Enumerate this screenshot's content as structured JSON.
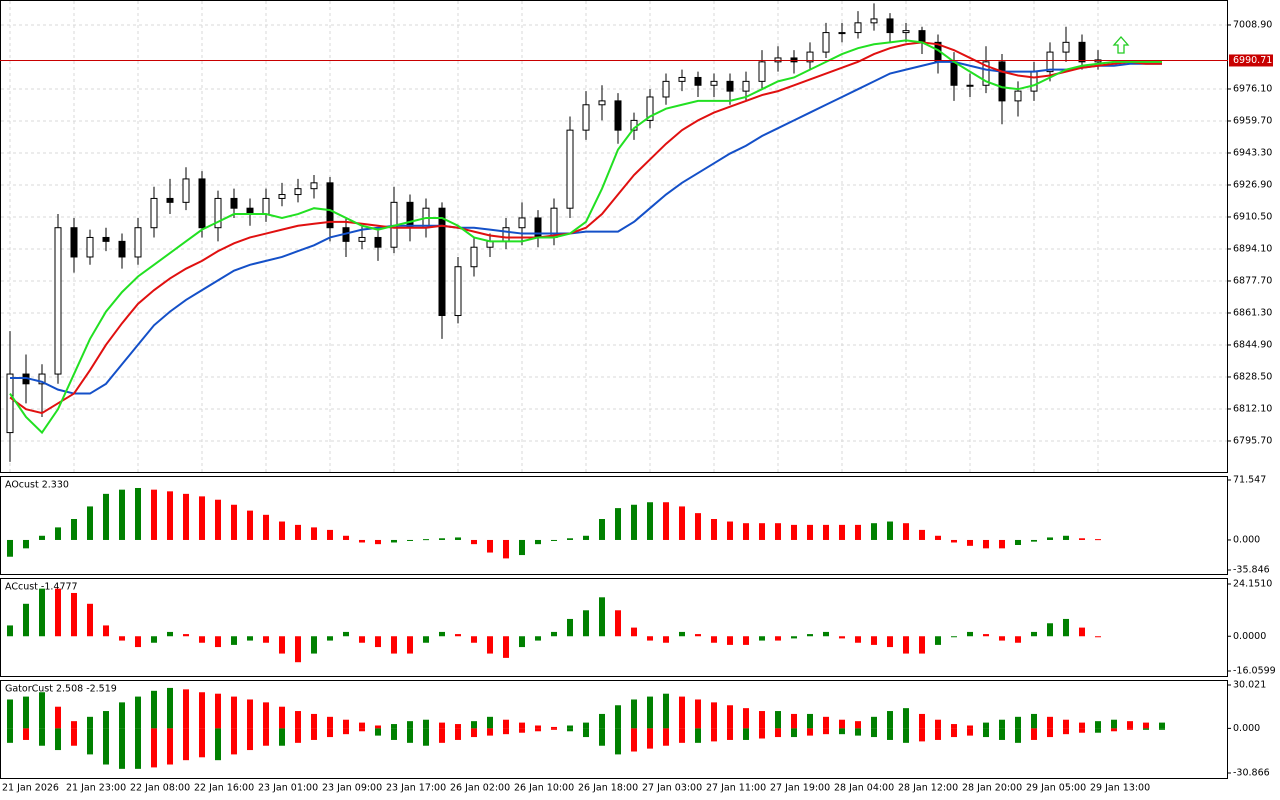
{
  "chart_data": [
    {
      "type": "candlestick",
      "categories": [
        "21 Jan 2026",
        null,
        null,
        null,
        "21 Jan 23:00",
        null,
        null,
        null,
        "22 Jan 08:00",
        null,
        null,
        null,
        "22 Jan 16:00",
        null,
        null,
        null,
        "23 Jan 01:00",
        null,
        null,
        null,
        "23 Jan 09:00",
        null,
        null,
        null,
        "23 Jan 17:00",
        null,
        null,
        null,
        "26 Jan 02:00",
        null,
        null,
        null,
        "26 Jan 10:00",
        null,
        null,
        null,
        "26 Jan 18:00",
        null,
        null,
        null,
        "27 Jan 03:00",
        null,
        null,
        null,
        "27 Jan 11:00",
        null,
        null,
        null,
        "27 Jan 19:00",
        null,
        null,
        null,
        "28 Jan 04:00",
        null,
        null,
        null,
        "28 Jan 12:00",
        null,
        null,
        null,
        "28 Jan 20:00",
        null,
        null,
        null,
        "29 Jan 05:00",
        null,
        null,
        null,
        "29 Jan 13:00",
        null,
        null,
        null,
        null
      ],
      "candles": [
        [
          6800,
          6852,
          6785,
          6830
        ],
        [
          6830,
          6840,
          6815,
          6825
        ],
        [
          6825,
          6835,
          6808,
          6830
        ],
        [
          6830,
          6912,
          6825,
          6905
        ],
        [
          6905,
          6910,
          6882,
          6890
        ],
        [
          6890,
          6904,
          6886,
          6900
        ],
        [
          6900,
          6905,
          6893,
          6898
        ],
        [
          6898,
          6902,
          6884,
          6890
        ],
        [
          6890,
          6910,
          6886,
          6905
        ],
        [
          6905,
          6926,
          6900,
          6920
        ],
        [
          6920,
          6930,
          6912,
          6918
        ],
        [
          6918,
          6936,
          6914,
          6930
        ],
        [
          6930,
          6934,
          6900,
          6905
        ],
        [
          6905,
          6924,
          6898,
          6920
        ],
        [
          6920,
          6925,
          6910,
          6915
        ],
        [
          6915,
          6920,
          6906,
          6912
        ],
        [
          6912,
          6925,
          6908,
          6920
        ],
        [
          6920,
          6928,
          6916,
          6922
        ],
        [
          6922,
          6930,
          6918,
          6925
        ],
        [
          6925,
          6932,
          6920,
          6928
        ],
        [
          6928,
          6931,
          6898,
          6905
        ],
        [
          6905,
          6910,
          6890,
          6898
        ],
        [
          6898,
          6906,
          6894,
          6900
        ],
        [
          6900,
          6904,
          6888,
          6895
        ],
        [
          6895,
          6926,
          6892,
          6918
        ],
        [
          6918,
          6922,
          6898,
          6905
        ],
        [
          6905,
          6920,
          6900,
          6915
        ],
        [
          6915,
          6918,
          6848,
          6860
        ],
        [
          6860,
          6890,
          6856,
          6885
        ],
        [
          6885,
          6900,
          6880,
          6895
        ],
        [
          6895,
          6902,
          6890,
          6898
        ],
        [
          6898,
          6910,
          6894,
          6905
        ],
        [
          6905,
          6918,
          6896,
          6910
        ],
        [
          6910,
          6914,
          6895,
          6900
        ],
        [
          6900,
          6920,
          6896,
          6915
        ],
        [
          6915,
          6962,
          6910,
          6955
        ],
        [
          6955,
          6975,
          6950,
          6968
        ],
        [
          6968,
          6978,
          6960,
          6970
        ],
        [
          6970,
          6974,
          6948,
          6955
        ],
        [
          6955,
          6964,
          6950,
          6960
        ],
        [
          6960,
          6976,
          6956,
          6972
        ],
        [
          6972,
          6984,
          6968,
          6980
        ],
        [
          6980,
          6986,
          6975,
          6982
        ],
        [
          6982,
          6985,
          6972,
          6978
        ],
        [
          6978,
          6984,
          6972,
          6980
        ],
        [
          6980,
          6984,
          6968,
          6975
        ],
        [
          6975,
          6985,
          6970,
          6980
        ],
        [
          6980,
          6996,
          6976,
          6990
        ],
        [
          6990,
          6998,
          6985,
          6992
        ],
        [
          6992,
          6996,
          6984,
          6990
        ],
        [
          6990,
          7000,
          6986,
          6995
        ],
        [
          6995,
          7010,
          6992,
          7005
        ],
        [
          7005,
          7010,
          7000,
          7005
        ],
        [
          7005,
          7016,
          7002,
          7010
        ],
        [
          7010,
          7020,
          7006,
          7012
        ],
        [
          7012,
          7015,
          7000,
          7005
        ],
        [
          7005,
          7010,
          7000,
          7006
        ],
        [
          7006,
          7008,
          6994,
          7000
        ],
        [
          7000,
          7004,
          6984,
          6990
        ],
        [
          6990,
          6995,
          6970,
          6978
        ],
        [
          6978,
          6984,
          6972,
          6978
        ],
        [
          6978,
          6998,
          6974,
          6990
        ],
        [
          6990,
          6994,
          6958,
          6970
        ],
        [
          6970,
          6980,
          6962,
          6975
        ],
        [
          6975,
          6990,
          6970,
          6985
        ],
        [
          6985,
          7000,
          6980,
          6995
        ],
        [
          6995,
          7008,
          6990,
          7000
        ],
        [
          7000,
          7004,
          6986,
          6990
        ],
        [
          6990,
          6996,
          6986,
          6991
        ],
        null,
        null,
        null,
        null
      ],
      "up_color": "#ffffff",
      "down_color": "#000000",
      "lines": [
        {
          "color": "#1450c8",
          "values": [
            6828,
            6828,
            6826,
            6822,
            6820,
            6820,
            6825,
            6835,
            6845,
            6855,
            6862,
            6868,
            6873,
            6878,
            6883,
            6886,
            6888,
            6890,
            6893,
            6896,
            6900,
            6902,
            6904,
            6905,
            6906,
            6906,
            6906,
            6906,
            6905,
            6905,
            6904,
            6903,
            6902,
            6902,
            6902,
            6902,
            6903,
            6903,
            6903,
            6908,
            6915,
            6922,
            6928,
            6933,
            6938,
            6943,
            6947,
            6952,
            6956,
            6960,
            6964,
            6968,
            6972,
            6976,
            6980,
            6984,
            6986,
            6988,
            6990,
            6990,
            6988,
            6986,
            6985,
            6985,
            6985,
            6986,
            6986,
            6987,
            6988,
            6988,
            6989,
            6989,
            6989
          ]
        },
        {
          "color": "#e01010",
          "values": [
            6818,
            6812,
            6810,
            6815,
            6820,
            6832,
            6845,
            6856,
            6866,
            6873,
            6879,
            6884,
            6888,
            6893,
            6897,
            6900,
            6902,
            6904,
            6906,
            6907,
            6908,
            6908,
            6907,
            6906,
            6905,
            6905,
            6905,
            6906,
            6905,
            6903,
            6901,
            6900,
            6900,
            6900,
            6901,
            6902,
            6905,
            6912,
            6922,
            6932,
            6940,
            6948,
            6955,
            6960,
            6964,
            6967,
            6970,
            6973,
            6975,
            6978,
            6981,
            6984,
            6987,
            6990,
            6994,
            6997,
            6999,
            7000,
            6999,
            6996,
            6992,
            6988,
            6985,
            6983,
            6982,
            6983,
            6985,
            6987,
            6988,
            6989,
            6990,
            6989,
            6989
          ]
        },
        {
          "color": "#22e022",
          "values": [
            6820,
            6808,
            6800,
            6812,
            6830,
            6848,
            6862,
            6872,
            6880,
            6886,
            6892,
            6898,
            6904,
            6908,
            6912,
            6912,
            6912,
            6910,
            6912,
            6915,
            6914,
            6910,
            6906,
            6904,
            6906,
            6908,
            6910,
            6910,
            6906,
            6900,
            6898,
            6898,
            6898,
            6900,
            6900,
            6902,
            6908,
            6925,
            6945,
            6956,
            6962,
            6966,
            6968,
            6970,
            6970,
            6970,
            6972,
            6976,
            6980,
            6982,
            6986,
            6990,
            6994,
            6997,
            6999,
            7000,
            7001,
            7000,
            6996,
            6990,
            6985,
            6980,
            6977,
            6976,
            6978,
            6982,
            6986,
            6988,
            6989,
            6990,
            6990,
            6990,
            6990
          ]
        }
      ],
      "ylim": [
        6779.8,
        7021.7
      ],
      "yticks": [
        {
          "value": 7008.9,
          "label": "7008.90"
        },
        {
          "value": 6976.1,
          "label": "6976.10"
        },
        {
          "value": 6959.7,
          "label": "6959.70"
        },
        {
          "value": 6943.3,
          "label": "6943.30"
        },
        {
          "value": 6926.9,
          "label": "6926.90"
        },
        {
          "value": 6910.5,
          "label": "6910.50"
        },
        {
          "value": 6894.1,
          "label": "6894.10"
        },
        {
          "value": 6877.7,
          "label": "6877.70"
        },
        {
          "value": 6861.3,
          "label": "6861.30"
        },
        {
          "value": 6844.9,
          "label": "6844.90"
        },
        {
          "value": 6828.5,
          "label": "6828.50"
        },
        {
          "value": 6812.1,
          "label": "6812.10"
        },
        {
          "value": 6795.7,
          "label": "6795.70"
        }
      ],
      "grid": true,
      "current_price": 6990.71,
      "current_price_color": "#c80000"
    },
    {
      "type": "histogram",
      "title": "AOcust 2.330",
      "values": [
        -20,
        -10,
        5,
        15,
        25,
        40,
        55,
        60,
        62,
        60,
        58,
        55,
        52,
        48,
        42,
        35,
        30,
        22,
        18,
        15,
        12,
        5,
        -3,
        -5,
        -3,
        0,
        1,
        2,
        3,
        -5,
        -15,
        -22,
        -18,
        -5,
        0,
        2,
        5,
        25,
        38,
        42,
        45,
        45,
        40,
        32,
        25,
        22,
        20,
        20,
        20,
        18,
        18,
        18,
        18,
        18,
        20,
        22,
        20,
        12,
        5,
        -3,
        -7,
        -10,
        -10,
        -6,
        -2,
        3,
        5,
        2,
        1
      ],
      "up_color": "#008000",
      "down_color": "#ff0000",
      "ylim": [
        -40.6,
        76.3
      ],
      "yticks": [
        71.547,
        {
          "value": 0,
          "label": "0.000"
        },
        -35.846
      ]
    },
    {
      "type": "histogram",
      "title": "ACcust -1.4777",
      "values": [
        5,
        15,
        22,
        22,
        20,
        15,
        5,
        -2,
        -5,
        -3,
        2,
        1,
        -3,
        -5,
        -4,
        -2,
        -3,
        -8,
        -12,
        -8,
        -2,
        2,
        -3,
        -5,
        -8,
        -8,
        -3,
        2,
        1,
        -3,
        -8,
        -10,
        -5,
        -2,
        2,
        8,
        12,
        18,
        12,
        4,
        -2,
        -3,
        2,
        1,
        -3,
        -4,
        -4,
        -2,
        -2,
        -1,
        1,
        2,
        -1,
        -3,
        -4,
        -5,
        -8,
        -8,
        -4,
        0,
        2,
        1,
        -2,
        -3,
        2,
        6,
        8,
        4,
        0
      ],
      "up_color": "#008000",
      "down_color": "#ff0000",
      "ylim": [
        -18.37,
        26.92
      ],
      "yticks": [
        {
          "value": 24.151,
          "label": "24.1510"
        },
        {
          "value": 0,
          "label": "0.0000"
        },
        -16.0599
      ]
    },
    {
      "type": "gator",
      "title": "GatorCust 2.508 -2.519",
      "upper": [
        20,
        22,
        25,
        15,
        5,
        8,
        12,
        18,
        22,
        26,
        28,
        27,
        25,
        24,
        22,
        20,
        18,
        15,
        12,
        10,
        8,
        6,
        4,
        2,
        3,
        5,
        6,
        4,
        3,
        5,
        8,
        6,
        4,
        2,
        1,
        2,
        4,
        10,
        16,
        20,
        22,
        24,
        22,
        20,
        18,
        16,
        14,
        12,
        12,
        10,
        10,
        8,
        6,
        5,
        8,
        12,
        14,
        10,
        6,
        3,
        2,
        4,
        6,
        8,
        10,
        8,
        6,
        4,
        5,
        6,
        5,
        4,
        4
      ],
      "lower": [
        -10,
        -8,
        -12,
        -15,
        -12,
        -18,
        -25,
        -28,
        -28,
        -27,
        -25,
        -22,
        -20,
        -22,
        -18,
        -15,
        -12,
        -12,
        -10,
        -8,
        -6,
        -4,
        -2,
        -5,
        -8,
        -10,
        -12,
        -10,
        -8,
        -6,
        -5,
        -4,
        -3,
        -2,
        -1,
        -2,
        -6,
        -12,
        -18,
        -16,
        -14,
        -12,
        -10,
        -10,
        -9,
        -8,
        -8,
        -7,
        -6,
        -6,
        -5,
        -4,
        -4,
        -5,
        -6,
        -8,
        -10,
        -9,
        -8,
        -6,
        -5,
        -6,
        -8,
        -10,
        -8,
        -6,
        -4,
        -3,
        -3,
        -2,
        -1,
        -1,
        -1
      ],
      "up_color": "#008000",
      "down_color": "#ff0000",
      "ylim": [
        -34.33,
        33.48
      ],
      "yticks": [
        30.021,
        {
          "value": 0,
          "label": "0.000"
        },
        -30.866
      ]
    }
  ]
}
